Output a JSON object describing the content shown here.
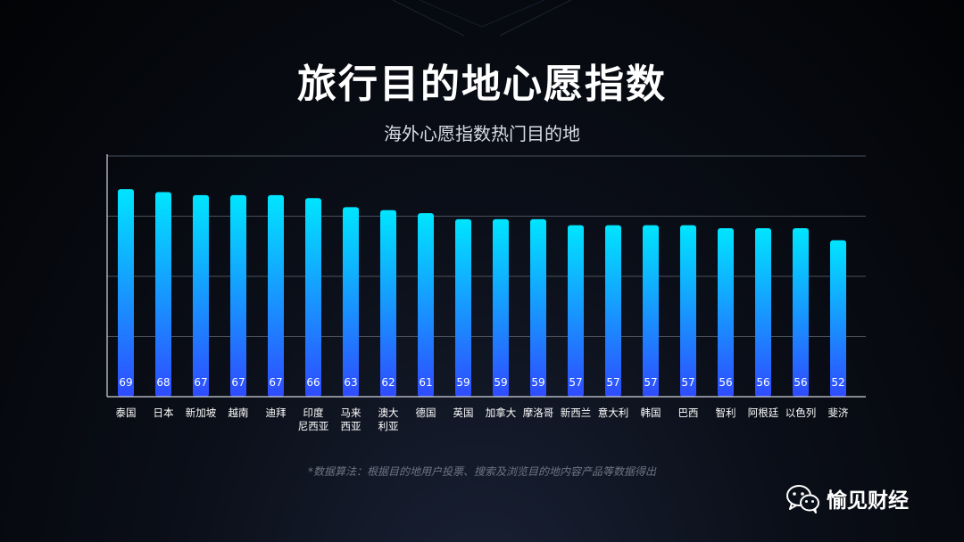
{
  "title": "旅行目的地心愿指数",
  "subtitle": "海外心愿指数热门目的地",
  "footnote": "*数据算法：根据目的地用户投票、搜索及浏览目的地内容产品等数据得出",
  "brand": {
    "name": "愉见财经",
    "icon": "wechat-icon"
  },
  "colors": {
    "bar_top": "#00e5ff",
    "bar_bottom": "#2f4bff",
    "axis": "#d0d4dc",
    "grid": "#4a4f5a"
  },
  "chart_data": {
    "type": "bar",
    "categories": [
      "泰国",
      "日本",
      "新加坡",
      "越南",
      "迪拜",
      "印度\n尼西亚",
      "马来\n西亚",
      "澳大\n利亚",
      "德国",
      "英国",
      "加拿大",
      "摩洛哥",
      "新西兰",
      "意大利",
      "韩国",
      "巴西",
      "智利",
      "阿根廷",
      "以色列",
      "斐济"
    ],
    "values": [
      69,
      68,
      67,
      67,
      67,
      66,
      63,
      62,
      61,
      59,
      59,
      59,
      57,
      57,
      57,
      57,
      56,
      56,
      56,
      52
    ],
    "ylim": [
      0,
      80
    ],
    "grid": true,
    "data_labels": true
  }
}
